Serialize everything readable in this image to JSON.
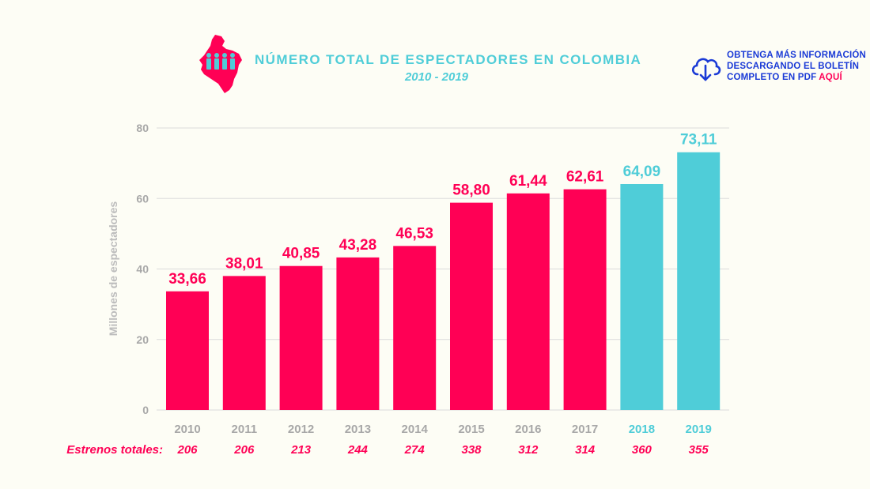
{
  "header": {
    "title": "NÚMERO TOTAL DE ESPECTADORES EN COLOMBIA",
    "subtitle": "2010 - 2019"
  },
  "download": {
    "line1": "OBTENGA MÁS INFORMACIÓN",
    "line2": "DESCARGANDO EL BOLETÍN",
    "line3_prefix": "COMPLETO EN PDF",
    "line3_link": "AQUÍ",
    "icon": "cloud-download-icon"
  },
  "colors": {
    "pink": "#ff0055",
    "cyan": "#4fcdd8",
    "grid": "#dcdcdc",
    "axis_text": "#a8a8a8",
    "header_blue": "#1a3ad6"
  },
  "chart_data": {
    "type": "bar",
    "title": "NÚMERO TOTAL DE ESPECTADORES EN COLOMBIA",
    "subtitle": "2010 - 2019",
    "ylabel": "Millones de espectadores",
    "xlabel": "",
    "ylim": [
      0,
      80
    ],
    "yticks": [
      0,
      20,
      40,
      60,
      80
    ],
    "grid": true,
    "categories": [
      "2010",
      "2011",
      "2012",
      "2013",
      "2014",
      "2015",
      "2016",
      "2017",
      "2018",
      "2019"
    ],
    "values": [
      33.66,
      38.01,
      40.85,
      43.28,
      46.53,
      58.8,
      61.44,
      62.61,
      64.09,
      73.11
    ],
    "value_labels": [
      "33,66",
      "38,01",
      "40,85",
      "43,28",
      "46,53",
      "58,80",
      "61,44",
      "62,61",
      "64,09",
      "73,11"
    ],
    "highlight": [
      "pink",
      "pink",
      "pink",
      "pink",
      "pink",
      "pink",
      "pink",
      "pink",
      "cyan",
      "cyan"
    ],
    "estrenos_label": "Estrenos totales:",
    "estrenos": [
      "206",
      "206",
      "213",
      "244",
      "274",
      "338",
      "312",
      "314",
      "360",
      "355"
    ]
  }
}
